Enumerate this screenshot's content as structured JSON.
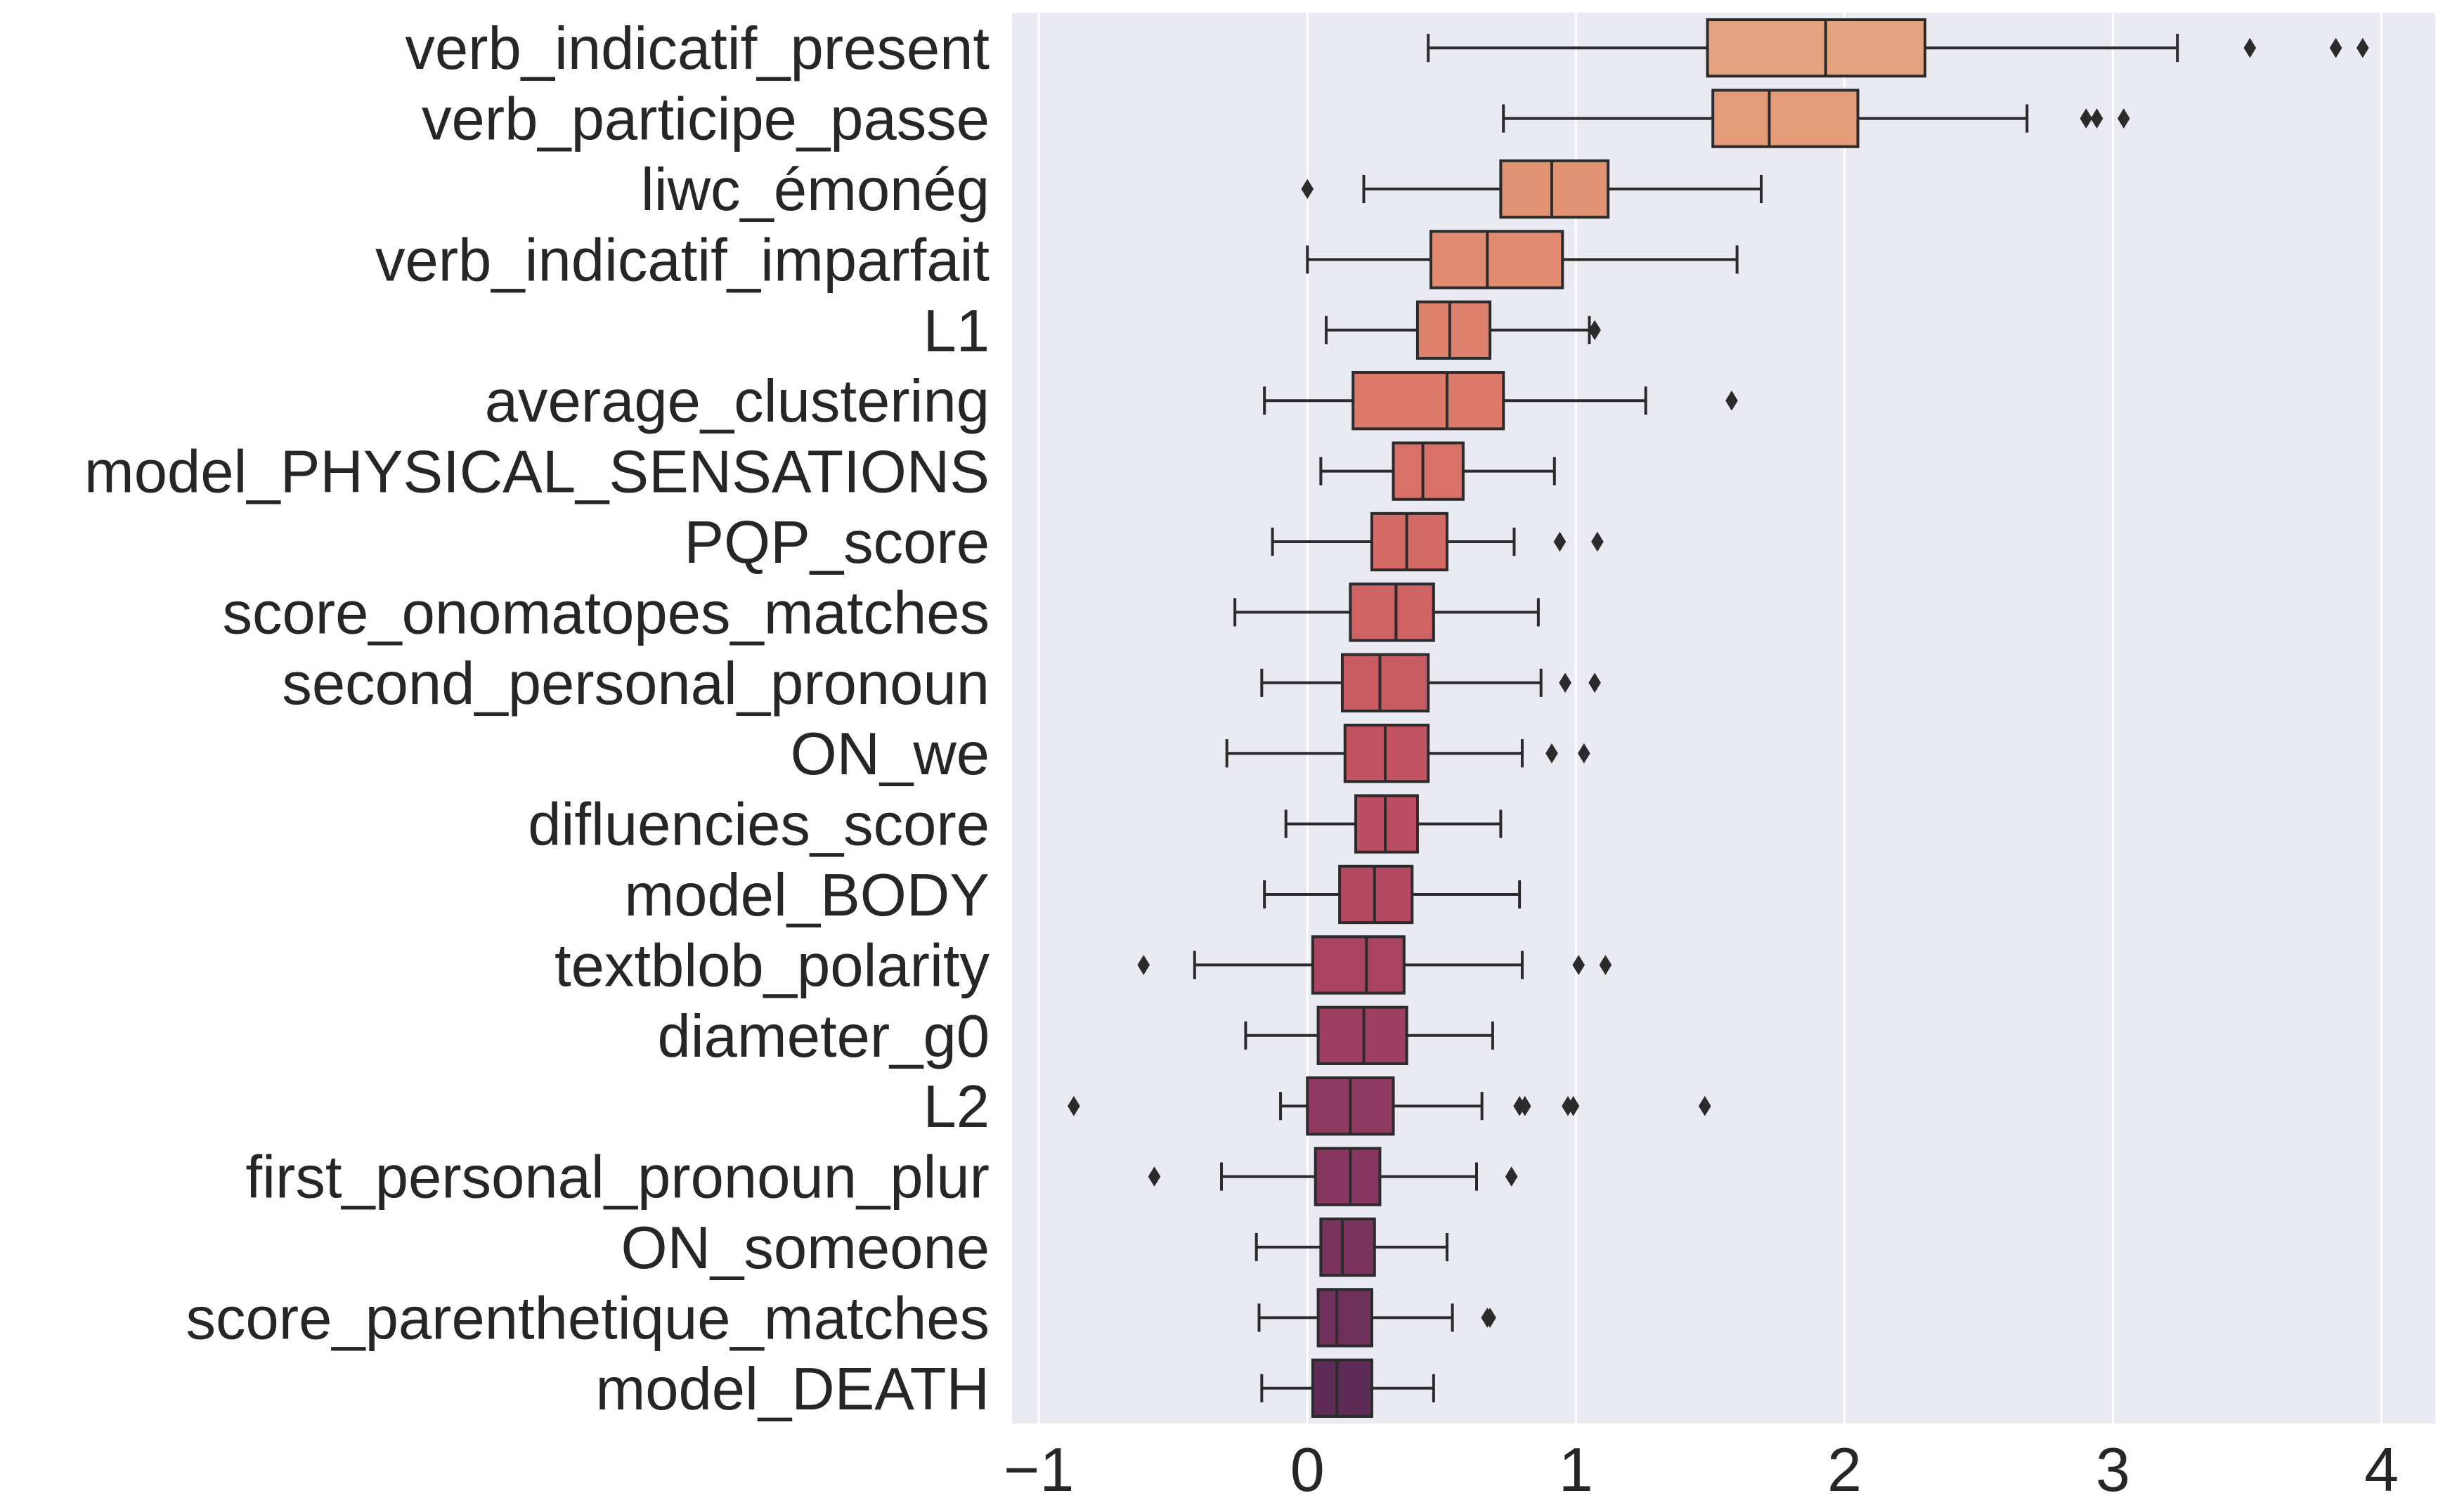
{
  "chart_data": {
    "type": "boxplot",
    "orientation": "horizontal",
    "title": "",
    "xlabel": "",
    "ylabel": "",
    "xlim": [
      -1.1,
      4.2
    ],
    "xticks": [
      -1,
      0,
      1,
      2,
      3,
      4
    ],
    "xtick_labels": [
      "−1",
      "0",
      "1",
      "2",
      "3",
      "4"
    ],
    "grid": true,
    "background": "#eaeaf2",
    "palette": "flare",
    "categories": [
      "verb_indicatif_present",
      "verb_participe_passe",
      "liwc_émonég",
      "verb_indicatif_imparfait",
      "L1",
      "average_clustering",
      "model_PHYSICAL_SENSATIONS",
      "PQP_score",
      "score_onomatopes_matches",
      "second_personal_pronoun",
      "ON_we",
      "difluencies_score",
      "model_BODY",
      "textblob_polarity",
      "diameter_g0",
      "L2",
      "first_personal_pronoun_plur",
      "ON_someone",
      "score_parenthetique_matches",
      "model_DEATH"
    ],
    "boxes": [
      {
        "whislo": 0.45,
        "q1": 1.49,
        "med": 1.93,
        "q3": 2.3,
        "whishi": 3.24,
        "fliers": [
          3.51,
          3.83,
          3.93
        ]
      },
      {
        "whislo": 0.73,
        "q1": 1.51,
        "med": 1.72,
        "q3": 2.05,
        "whishi": 2.68,
        "fliers": [
          2.9,
          2.94,
          3.04
        ]
      },
      {
        "whislo": 0.21,
        "q1": 0.72,
        "med": 0.91,
        "q3": 1.12,
        "whishi": 1.69,
        "fliers": [
          0.0
        ]
      },
      {
        "whislo": 0.0,
        "q1": 0.46,
        "med": 0.67,
        "q3": 0.95,
        "whishi": 1.6,
        "fliers": []
      },
      {
        "whislo": 0.07,
        "q1": 0.41,
        "med": 0.53,
        "q3": 0.68,
        "whishi": 1.05,
        "fliers": [
          1.07
        ]
      },
      {
        "whislo": -0.16,
        "q1": 0.17,
        "med": 0.52,
        "q3": 0.73,
        "whishi": 1.26,
        "fliers": [
          1.58
        ]
      },
      {
        "whislo": 0.05,
        "q1": 0.32,
        "med": 0.43,
        "q3": 0.58,
        "whishi": 0.92,
        "fliers": []
      },
      {
        "whislo": -0.13,
        "q1": 0.24,
        "med": 0.37,
        "q3": 0.52,
        "whishi": 0.77,
        "fliers": [
          0.94,
          1.08
        ]
      },
      {
        "whislo": -0.27,
        "q1": 0.16,
        "med": 0.33,
        "q3": 0.47,
        "whishi": 0.86,
        "fliers": []
      },
      {
        "whislo": -0.17,
        "q1": 0.13,
        "med": 0.27,
        "q3": 0.45,
        "whishi": 0.87,
        "fliers": [
          0.96,
          1.07
        ]
      },
      {
        "whislo": -0.3,
        "q1": 0.14,
        "med": 0.29,
        "q3": 0.45,
        "whishi": 0.8,
        "fliers": [
          0.91,
          1.03
        ]
      },
      {
        "whislo": -0.08,
        "q1": 0.18,
        "med": 0.29,
        "q3": 0.41,
        "whishi": 0.72,
        "fliers": []
      },
      {
        "whislo": -0.16,
        "q1": 0.12,
        "med": 0.25,
        "q3": 0.39,
        "whishi": 0.79,
        "fliers": []
      },
      {
        "whislo": -0.42,
        "q1": 0.02,
        "med": 0.22,
        "q3": 0.36,
        "whishi": 0.8,
        "fliers": [
          -0.61,
          1.01,
          1.11
        ]
      },
      {
        "whislo": -0.23,
        "q1": 0.04,
        "med": 0.21,
        "q3": 0.37,
        "whishi": 0.69,
        "fliers": []
      },
      {
        "whislo": -0.1,
        "q1": 0.0,
        "med": 0.16,
        "q3": 0.32,
        "whishi": 0.65,
        "fliers": [
          -0.87,
          0.79,
          0.81,
          0.97,
          0.99,
          1.48
        ]
      },
      {
        "whislo": -0.32,
        "q1": 0.03,
        "med": 0.16,
        "q3": 0.27,
        "whishi": 0.63,
        "fliers": [
          -0.57,
          0.76
        ]
      },
      {
        "whislo": -0.19,
        "q1": 0.05,
        "med": 0.13,
        "q3": 0.25,
        "whishi": 0.52,
        "fliers": []
      },
      {
        "whislo": -0.18,
        "q1": 0.04,
        "med": 0.11,
        "q3": 0.24,
        "whishi": 0.54,
        "fliers": [
          0.67,
          0.68
        ]
      },
      {
        "whislo": -0.17,
        "q1": 0.02,
        "med": 0.11,
        "q3": 0.24,
        "whishi": 0.47,
        "fliers": []
      }
    ],
    "colors": [
      "#e5a47f",
      "#e49b78",
      "#e29374",
      "#e18b71",
      "#df826d",
      "#dc7a6a",
      "#d87166",
      "#d46a65",
      "#cf6263",
      "#c95b62",
      "#c25462",
      "#bb4e62",
      "#b24862",
      "#a84362",
      "#9d3e62",
      "#913a61",
      "#86365f",
      "#7a335d",
      "#6f305b",
      "#5f2b57"
    ],
    "line_color": "#2b2b2b"
  }
}
